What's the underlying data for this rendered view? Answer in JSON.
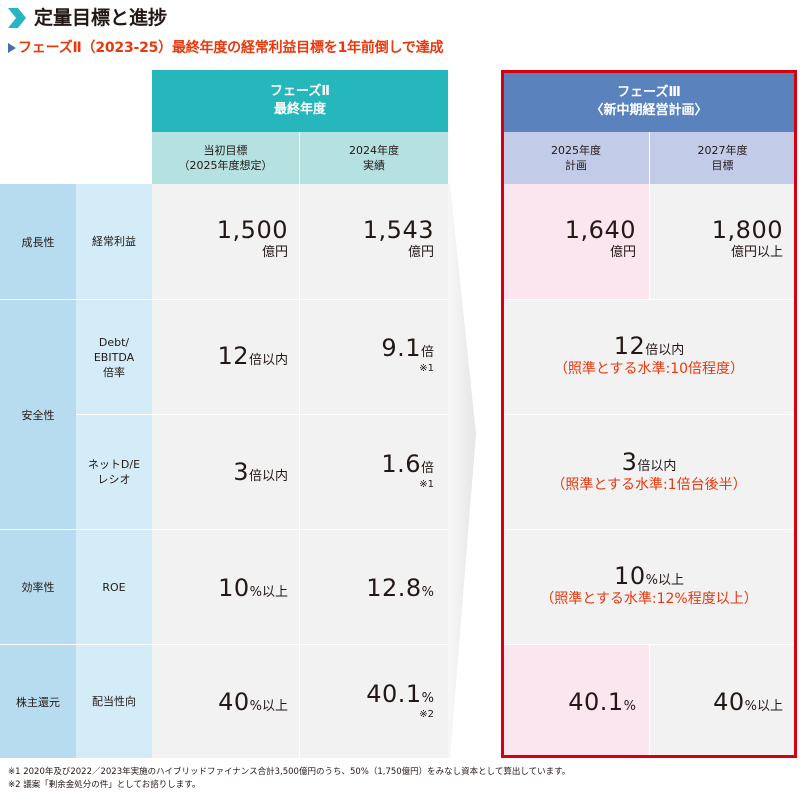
{
  "header": {
    "title": "定量目標と進捗",
    "subtitle": "フェーズⅡ（2023-25）最終年度の経常利益目標を1年前倒しで達成"
  },
  "phase2": {
    "title_line1": "フェーズⅡ",
    "title_line2": "最終年度",
    "col1_line1": "当初目標",
    "col1_line2": "（2025年度想定）",
    "col2_line1": "2024年度",
    "col2_line2": "実績"
  },
  "phase3": {
    "title_line1": "フェーズⅢ",
    "title_line2": "〈新中期経営計画〉",
    "col1_line1": "2025年度",
    "col1_line2": "計画",
    "col2_line1": "2027年度",
    "col2_line2": "目標"
  },
  "rows": {
    "growth": {
      "category": "成長性",
      "item": "経常利益",
      "initial_target": "1,500",
      "initial_target_unit": "億円",
      "actual_2024": "1,543",
      "actual_2024_unit": "億円",
      "plan_2025": "1,640",
      "plan_2025_unit": "億円",
      "target_2027": "1,800",
      "target_2027_unit": "億円以上"
    },
    "safety": {
      "category": "安全性",
      "debt_item_line1": "Debt/",
      "debt_item_line2": "EBITDA",
      "debt_item_line3": "倍率",
      "debt_initial_num": "12",
      "debt_initial_unit": "倍以内",
      "debt_actual_num": "9.1",
      "debt_actual_unit": "倍",
      "debt_actual_note": "※1",
      "debt_p3_num": "12",
      "debt_p3_unit": "倍以内",
      "debt_p3_reference": "（照準とする水準:10倍程度）",
      "de_item_line1": "ネットD/E",
      "de_item_line2": "レシオ",
      "de_initial_num": "3",
      "de_initial_unit": "倍以内",
      "de_actual_num": "1.6",
      "de_actual_unit": "倍",
      "de_actual_note": "※1",
      "de_p3_num": "3",
      "de_p3_unit": "倍以内",
      "de_p3_reference": "（照準とする水準:1倍台後半）"
    },
    "efficiency": {
      "category": "効率性",
      "item": "ROE",
      "initial_num": "10",
      "initial_unit": "%以上",
      "actual_num": "12.8",
      "actual_unit": "%",
      "p3_num": "10",
      "p3_unit": "%以上",
      "p3_reference": "（照準とする水準:12%程度以上）"
    },
    "returns": {
      "category": "株主還元",
      "item": "配当性向",
      "initial_num": "40",
      "initial_unit": "%以上",
      "actual_num": "40.1",
      "actual_unit": "%",
      "actual_note": "※2",
      "plan_num": "40.1",
      "plan_unit": "%",
      "target_num": "40",
      "target_unit": "%以上"
    }
  },
  "footnotes": {
    "note1": "※1  2020年及び2022／2023年実施のハイブリッドファイナンス合計3,500億円のうち、50%（1,750億円）をみなし資本として算出しています。",
    "note2": "※2  議案「剰余金処分の件」としてお諮りします。"
  },
  "colors": {
    "phase2_header": "#26b7bc",
    "phase3_header": "#5a83bd",
    "highlight_frame": "#d7000f",
    "accent_text": "#e8380d"
  }
}
